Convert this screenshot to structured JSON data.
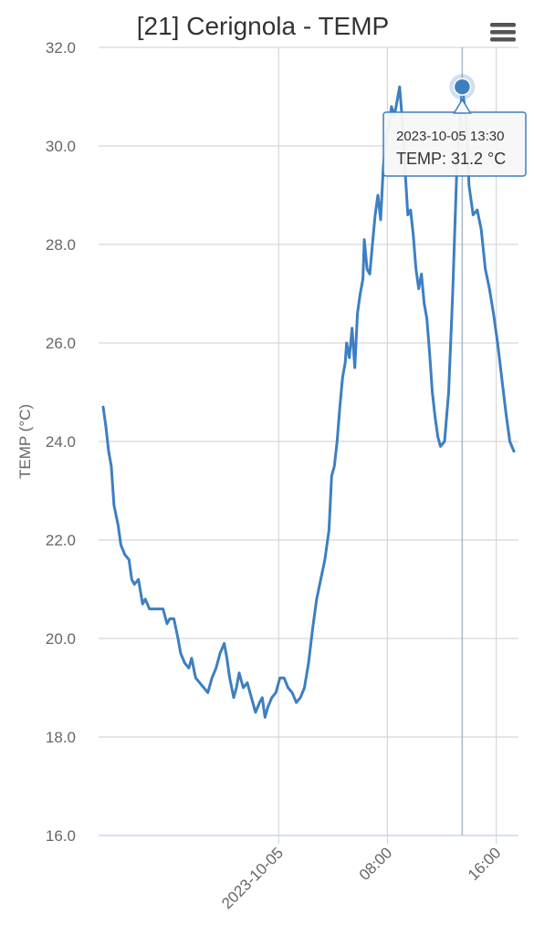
{
  "colors": {
    "series": "#3d7fc2",
    "grid": "#d6d6d6",
    "axis": "#ccd6eb",
    "text": "#666666"
  },
  "menu": {
    "icon": "hamburger-menu-icon"
  },
  "tooltip": {
    "date": "2023-10-05 13:30",
    "label": "TEMP: 31.2 °C"
  },
  "chart_data": {
    "type": "line",
    "title": "[21] Cerignola - TEMP",
    "ylabel": "TEMP (°C)",
    "xlabel": "",
    "ylim": [
      16,
      32
    ],
    "yticks": [
      "16.0",
      "18.0",
      "20.0",
      "22.0",
      "24.0",
      "26.0",
      "28.0",
      "30.0",
      "32.0"
    ],
    "xlim_hours": [
      -12.9,
      17.3
    ],
    "xticks": [
      {
        "label": "2023-10-05",
        "hour": 0
      },
      {
        "label": "08:00",
        "hour": 8
      },
      {
        "label": "16:00",
        "hour": 16
      }
    ],
    "grid": true,
    "legend": "none",
    "highlight": {
      "hour": 13.5,
      "value": 31.2
    },
    "series": [
      {
        "values": [
          [
            -12.9,
            24.7
          ],
          [
            -12.7,
            24.3
          ],
          [
            -12.5,
            23.8
          ],
          [
            -12.3,
            23.5
          ],
          [
            -12.1,
            22.7
          ],
          [
            -11.8,
            22.3
          ],
          [
            -11.6,
            21.9
          ],
          [
            -11.3,
            21.7
          ],
          [
            -11.0,
            21.6
          ],
          [
            -10.8,
            21.2
          ],
          [
            -10.6,
            21.1
          ],
          [
            -10.3,
            21.2
          ],
          [
            -10.0,
            20.7
          ],
          [
            -9.8,
            20.8
          ],
          [
            -9.5,
            20.6
          ],
          [
            -9.0,
            20.6
          ],
          [
            -8.5,
            20.6
          ],
          [
            -8.2,
            20.3
          ],
          [
            -8.0,
            20.4
          ],
          [
            -7.7,
            20.4
          ],
          [
            -7.4,
            20.0
          ],
          [
            -7.2,
            19.7
          ],
          [
            -6.9,
            19.5
          ],
          [
            -6.6,
            19.4
          ],
          [
            -6.4,
            19.6
          ],
          [
            -6.1,
            19.2
          ],
          [
            -5.8,
            19.1
          ],
          [
            -5.5,
            19.0
          ],
          [
            -5.2,
            18.9
          ],
          [
            -4.9,
            19.2
          ],
          [
            -4.6,
            19.4
          ],
          [
            -4.3,
            19.7
          ],
          [
            -4.0,
            19.9
          ],
          [
            -3.8,
            19.6
          ],
          [
            -3.6,
            19.2
          ],
          [
            -3.3,
            18.8
          ],
          [
            -3.1,
            19.0
          ],
          [
            -2.9,
            19.3
          ],
          [
            -2.6,
            19.0
          ],
          [
            -2.3,
            19.1
          ],
          [
            -2.0,
            18.8
          ],
          [
            -1.7,
            18.5
          ],
          [
            -1.4,
            18.7
          ],
          [
            -1.2,
            18.8
          ],
          [
            -1.0,
            18.4
          ],
          [
            -0.8,
            18.6
          ],
          [
            -0.5,
            18.8
          ],
          [
            -0.2,
            18.9
          ],
          [
            0.1,
            19.2
          ],
          [
            0.4,
            19.2
          ],
          [
            0.7,
            19.0
          ],
          [
            1.0,
            18.9
          ],
          [
            1.3,
            18.7
          ],
          [
            1.6,
            18.8
          ],
          [
            1.9,
            19.0
          ],
          [
            2.2,
            19.5
          ],
          [
            2.5,
            20.2
          ],
          [
            2.8,
            20.8
          ],
          [
            3.1,
            21.2
          ],
          [
            3.4,
            21.6
          ],
          [
            3.7,
            22.2
          ],
          [
            3.9,
            23.3
          ],
          [
            4.1,
            23.5
          ],
          [
            4.3,
            24.0
          ],
          [
            4.5,
            24.7
          ],
          [
            4.7,
            25.3
          ],
          [
            4.9,
            25.6
          ],
          [
            5.0,
            26.0
          ],
          [
            5.2,
            25.7
          ],
          [
            5.4,
            26.3
          ],
          [
            5.6,
            25.5
          ],
          [
            5.8,
            26.6
          ],
          [
            6.0,
            27.0
          ],
          [
            6.2,
            27.3
          ],
          [
            6.3,
            28.1
          ],
          [
            6.5,
            27.5
          ],
          [
            6.7,
            27.4
          ],
          [
            6.9,
            28.0
          ],
          [
            7.1,
            28.6
          ],
          [
            7.3,
            29.0
          ],
          [
            7.5,
            28.5
          ],
          [
            7.7,
            29.6
          ],
          [
            7.9,
            30.2
          ],
          [
            8.1,
            30.4
          ],
          [
            8.3,
            30.8
          ],
          [
            8.5,
            30.6
          ],
          [
            8.7,
            30.9
          ],
          [
            8.9,
            31.2
          ],
          [
            9.1,
            30.5
          ],
          [
            9.3,
            29.5
          ],
          [
            9.5,
            28.6
          ],
          [
            9.7,
            28.7
          ],
          [
            9.9,
            28.2
          ],
          [
            10.1,
            27.5
          ],
          [
            10.3,
            27.1
          ],
          [
            10.5,
            27.4
          ],
          [
            10.7,
            26.8
          ],
          [
            10.9,
            26.5
          ],
          [
            11.1,
            25.8
          ],
          [
            11.3,
            25.0
          ],
          [
            11.5,
            24.5
          ],
          [
            11.7,
            24.1
          ],
          [
            11.9,
            23.9
          ],
          [
            12.2,
            24.0
          ],
          [
            12.5,
            25.0
          ],
          [
            12.8,
            27.0
          ],
          [
            13.1,
            29.5
          ],
          [
            13.5,
            31.2
          ],
          [
            13.8,
            30.5
          ],
          [
            14.0,
            29.2
          ],
          [
            14.3,
            28.6
          ],
          [
            14.6,
            28.7
          ],
          [
            14.9,
            28.3
          ],
          [
            15.2,
            27.5
          ],
          [
            15.5,
            27.1
          ],
          [
            15.8,
            26.6
          ],
          [
            16.1,
            26.0
          ],
          [
            16.4,
            25.3
          ],
          [
            16.7,
            24.6
          ],
          [
            17.0,
            24.0
          ],
          [
            17.3,
            23.8
          ]
        ]
      }
    ]
  }
}
